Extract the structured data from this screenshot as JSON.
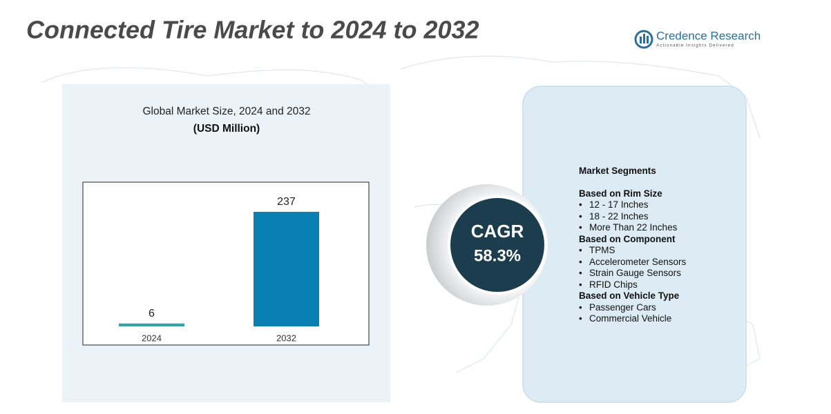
{
  "header": {
    "title": "Connected Tire Market to 2024 to 2032",
    "logo_name": "Credence Research",
    "logo_tagline": "Actionable Insights Delivered"
  },
  "chart_data": {
    "type": "bar",
    "title": "Global Market Size, 2024 and 2032",
    "subtitle": "(USD Million)",
    "categories": [
      "2024",
      "2032"
    ],
    "values": [
      6,
      237
    ],
    "colors": [
      "#35a3a4",
      "#0a80b2"
    ]
  },
  "cagr": {
    "label": "CAGR",
    "value": "58.3%"
  },
  "segments": {
    "heading": "Market Segments",
    "groups": [
      {
        "title": "Based on Rim Size",
        "items": [
          "12 - 17 Inches",
          "18 - 22 Inches",
          "More Than 22 Inches"
        ]
      },
      {
        "title": "Based on Component",
        "items": [
          "TPMS",
          "Accelerometer Sensors",
          "Strain Gauge Sensors",
          "RFID Chips"
        ]
      },
      {
        "title": "Based on Vehicle Type",
        "items": [
          "Passenger Cars",
          "Commercial Vehicle"
        ]
      }
    ]
  }
}
